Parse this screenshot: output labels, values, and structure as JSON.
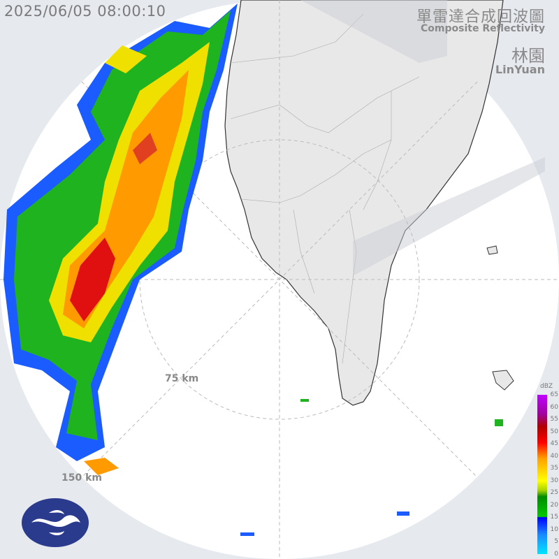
{
  "header": {
    "timestamp": "2025/06/05 08:00:10",
    "title_zh": "單雷達合成回波圖",
    "title_en": "Composite Reflectivity",
    "station_zh": "林園",
    "station_en": "LinYuan"
  },
  "range_rings": [
    {
      "label": "75 km"
    },
    {
      "label": "150 km"
    }
  ],
  "legend": {
    "unit": "dBZ",
    "ticks": [
      "65",
      "60",
      "55",
      "50",
      "45",
      "40",
      "35",
      "30",
      "25",
      "20",
      "15",
      "10",
      "5",
      "0"
    ]
  },
  "colors": {
    "background": "#e6eaef",
    "radar_disk": "#ffffff",
    "land": "#e8e8e8",
    "blocked_sector": "#d4d9df"
  },
  "logo": {
    "name": "cwa-logo-icon"
  }
}
